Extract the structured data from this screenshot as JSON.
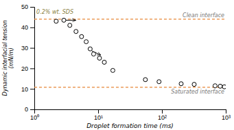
{
  "chart_data": {
    "type": "scatter",
    "x_label": "Droplet formation time (ms)",
    "y_label": "Dynamic interfacial tension\n(mN/m)",
    "x": [
      2.2,
      2.9,
      3.6,
      4.5,
      5.5,
      6.5,
      7.5,
      8.5,
      10.5,
      12.5,
      17,
      55,
      90,
      200,
      320,
      680,
      820,
      950
    ],
    "values": [
      43,
      43.5,
      41,
      38,
      35.5,
      33,
      29.5,
      27,
      25,
      23,
      19,
      14.5,
      13.5,
      12.5,
      12.2,
      11.5,
      11.3,
      11.0
    ],
    "color": "#000000",
    "marker": "circle",
    "log": "x",
    "grid": false,
    "xlim": [
      1,
      1000
    ],
    "xticks": [
      {
        "value": 1,
        "label": "10⁰"
      },
      {
        "value": 10,
        "label": "10¹"
      },
      {
        "value": 100,
        "label": "10²"
      },
      {
        "value": 1000,
        "label": "10³"
      }
    ],
    "ylim": [
      0,
      50
    ],
    "yticks": [
      0,
      10,
      20,
      30,
      40,
      50
    ],
    "hlines": [
      {
        "value": 44,
        "label": "Clean interface",
        "color": "#E8883A",
        "line_style": "dashed"
      },
      {
        "value": 10.8,
        "label": "Saturated interface",
        "color": "#E8883A",
        "line_style": "dashed"
      }
    ],
    "annotations": [
      {
        "text": "0.2% wt. SDS",
        "x": 1.08,
        "y": 48.5
      }
    ],
    "arrows": [
      {
        "from": [
          3.0,
          43.5
        ],
        "to": [
          4.5,
          43.5
        ]
      },
      {
        "from": [
          8.0,
          28.5
        ],
        "to": [
          11.0,
          26.5
        ]
      }
    ]
  }
}
